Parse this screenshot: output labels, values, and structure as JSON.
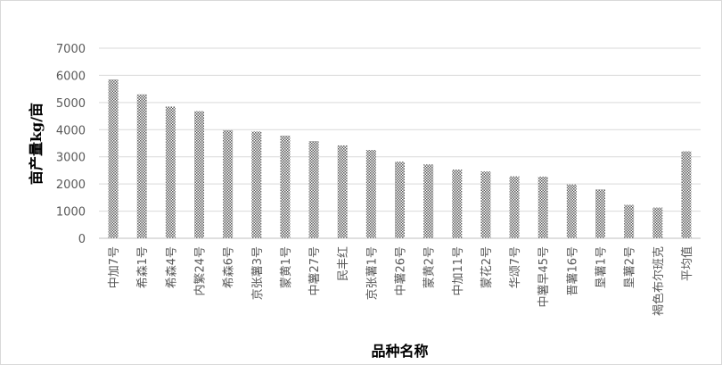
{
  "chart_data": {
    "type": "bar",
    "title": "",
    "xlabel": "品种名称",
    "ylabel": "亩产量kg/亩",
    "ylim": [
      0,
      7000
    ],
    "yticks": [
      0,
      1000,
      2000,
      3000,
      4000,
      5000,
      6000,
      7000
    ],
    "grid": true,
    "legend": "none",
    "bar_pattern": "checkerboard",
    "colors": {
      "bar_dark": "#595959",
      "bar_light": "#ffffff",
      "grid": "#d9d9d9",
      "axis": "#bfbfbf",
      "text": "#595959"
    },
    "categories": [
      "中加7号",
      "希森1号",
      "希森4号",
      "内繁24号",
      "希森6号",
      "京张薯3号",
      "蒙黄1号",
      "中薯27号",
      "民丰红",
      "京张薯1号",
      "中薯26号",
      "蒙黄2号",
      "中加11号",
      "蒙花2号",
      "华颂7号",
      "中薯早45号",
      "晋薯16号",
      "垦薯1号",
      "垦薯2号",
      "褐色布尔班克",
      "平均值"
    ],
    "values": [
      5850,
      5300,
      4850,
      4680,
      3980,
      3930,
      3780,
      3580,
      3420,
      3250,
      2820,
      2720,
      2530,
      2460,
      2280,
      2270,
      1980,
      1800,
      1230,
      1130,
      3200
    ]
  }
}
